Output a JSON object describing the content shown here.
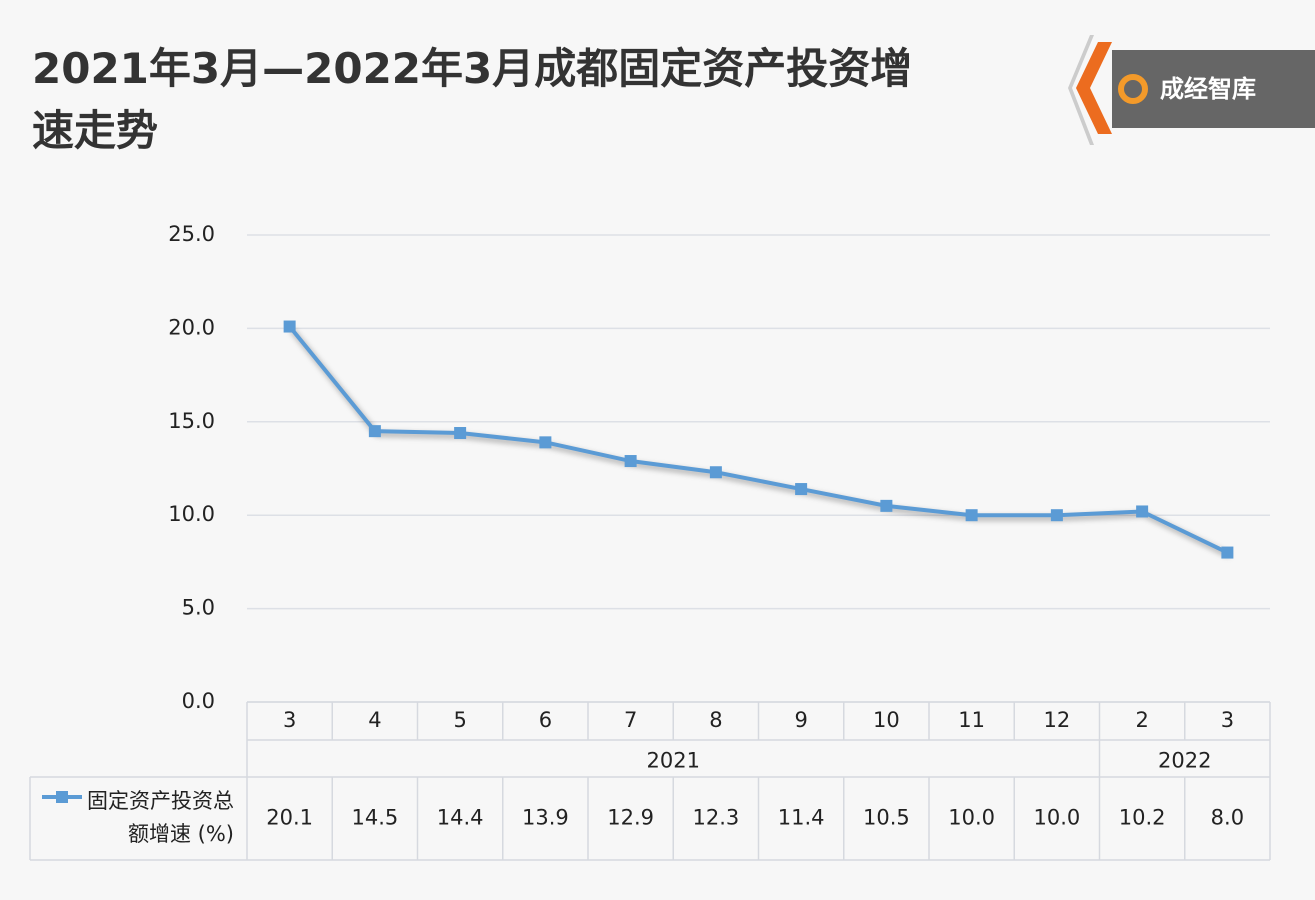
{
  "page_title": "2021年3月—2022年3月成都固定资产投资增速走势",
  "logo": {
    "text": "成经智库"
  },
  "chart_data": {
    "type": "line",
    "groups": [
      {
        "name": "2021",
        "categories": [
          "3",
          "4",
          "5",
          "6",
          "7",
          "8",
          "9",
          "10",
          "11",
          "12"
        ]
      },
      {
        "name": "2022",
        "categories": [
          "2",
          "3"
        ]
      }
    ],
    "series": [
      {
        "name": "固定资产投资总额增速 (%)",
        "color": "#5b9bd5",
        "values": [
          20.1,
          14.5,
          14.4,
          13.9,
          12.9,
          12.3,
          11.4,
          10.5,
          10.0,
          10.0,
          10.2,
          8.0
        ],
        "value_labels": [
          "20.1",
          "14.5",
          "14.4",
          "13.9",
          "12.9",
          "12.3",
          "11.4",
          "10.5",
          "10.0",
          "10.0",
          "10.2",
          "8.0"
        ]
      }
    ],
    "ylim": [
      0,
      25
    ],
    "yticks": [
      {
        "value": 0,
        "label": "0.0"
      },
      {
        "value": 5,
        "label": "5.0"
      },
      {
        "value": 10,
        "label": "10.0"
      },
      {
        "value": 15,
        "label": "15.0"
      },
      {
        "value": 20,
        "label": "20.0"
      },
      {
        "value": 25,
        "label": "25.0"
      }
    ],
    "grid": true
  }
}
